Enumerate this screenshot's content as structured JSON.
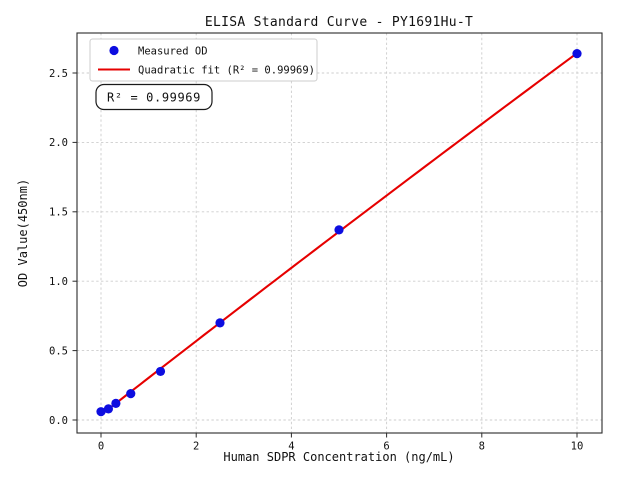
{
  "chart_data": {
    "type": "scatter",
    "title": "ELISA Standard Curve - PY1691Hu-T",
    "xlabel": "Human SDPR Concentration (ng/mL)",
    "ylabel": "OD Value(450nm)",
    "xlim": [
      -0.5,
      10.52
    ],
    "ylim": [
      -0.094,
      2.79
    ],
    "xticks": [
      0,
      2,
      4,
      6,
      8,
      10
    ],
    "yticks": [
      0.0,
      0.5,
      1.0,
      1.5,
      2.0,
      2.5
    ],
    "grid": true,
    "legend_position": "upper left",
    "series": [
      {
        "name": "Measured OD",
        "type": "scatter",
        "marker": "circle",
        "color": "#0d0de0",
        "x": [
          0,
          0.156,
          0.3125,
          0.625,
          1.25,
          2.5,
          5,
          10
        ],
        "y": [
          0.06,
          0.08,
          0.12,
          0.19,
          0.35,
          0.7,
          1.37,
          2.64
        ]
      },
      {
        "name": "Quadratic fit (R² = 0.99969)",
        "type": "line",
        "fit": "quadratic",
        "color": "#e60000"
      }
    ],
    "r_squared": "0.99969",
    "annotation": "R² = 0.99969"
  },
  "colors": {
    "background": "#ffffff",
    "grid": "#cdcdcd",
    "frame": "#2b2b2b",
    "marker_blue": "#0d0de0",
    "line_red": "#e60000"
  }
}
